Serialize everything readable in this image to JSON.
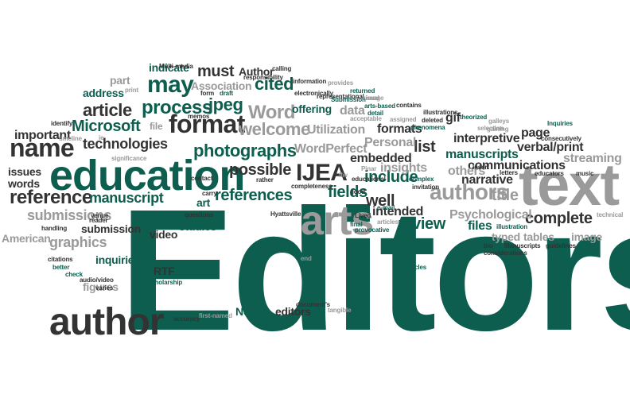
{
  "palette": {
    "green": "#0d5e4f",
    "dark": "#333333",
    "gray": "#9a9a9a",
    "black": "#1a1a1a"
  },
  "words": [
    {
      "text": "Editors",
      "c": "green"
    },
    {
      "text": "text",
      "c": "gray"
    },
    {
      "text": "education",
      "c": "green"
    },
    {
      "text": "author",
      "c": "dark"
    },
    {
      "text": "arts",
      "c": "gray"
    },
    {
      "text": "authors",
      "c": "gray"
    },
    {
      "text": "name",
      "c": "dark"
    },
    {
      "text": "format",
      "c": "dark"
    },
    {
      "text": "may",
      "c": "green"
    },
    {
      "text": "IJEA",
      "c": "dark"
    },
    {
      "text": "reference",
      "c": "dark"
    },
    {
      "text": "photographs",
      "c": "green"
    },
    {
      "text": "process",
      "c": "green"
    },
    {
      "text": "Word",
      "c": "gray"
    },
    {
      "text": "article",
      "c": "dark"
    },
    {
      "text": "jpeg",
      "c": "green"
    },
    {
      "text": "Microsoft",
      "c": "green"
    },
    {
      "text": "welcome",
      "c": "gray"
    },
    {
      "text": "cited",
      "c": "green"
    },
    {
      "text": "technologies",
      "c": "dark"
    },
    {
      "text": "possible",
      "c": "dark"
    },
    {
      "text": "references",
      "c": "green"
    },
    {
      "text": "fields",
      "c": "green"
    },
    {
      "text": "manuscript",
      "c": "green"
    },
    {
      "text": "submissions",
      "c": "gray"
    },
    {
      "text": "graphics",
      "c": "gray"
    },
    {
      "text": "must",
      "c": "dark"
    },
    {
      "text": "include",
      "c": "green"
    },
    {
      "text": "review",
      "c": "green"
    },
    {
      "text": "well",
      "c": "dark"
    },
    {
      "text": "complete",
      "c": "dark"
    },
    {
      "text": "list",
      "c": "dark"
    },
    {
      "text": "title",
      "c": "gray"
    },
    {
      "text": "streaming",
      "c": "gray"
    },
    {
      "text": "files",
      "c": "green"
    },
    {
      "text": "important",
      "c": "dark"
    },
    {
      "text": "Psychological",
      "c": "gray"
    },
    {
      "text": "interpretive",
      "c": "dark"
    },
    {
      "text": "manuscripts",
      "c": "green"
    },
    {
      "text": "Personal",
      "c": "gray"
    },
    {
      "text": "insights",
      "c": "gray"
    },
    {
      "text": "narrative",
      "c": "dark"
    },
    {
      "text": "communications",
      "c": "dark"
    },
    {
      "text": "verbal/print",
      "c": "dark"
    },
    {
      "text": "embedded",
      "c": "dark"
    },
    {
      "text": "intended",
      "c": "dark"
    },
    {
      "text": "others",
      "c": "gray"
    },
    {
      "text": "page",
      "c": "dark"
    },
    {
      "text": "typed",
      "c": "gray"
    },
    {
      "text": "tables",
      "c": "gray"
    },
    {
      "text": "image",
      "c": "gray"
    },
    {
      "text": "Utilization",
      "c": "gray"
    },
    {
      "text": "WordPerfect",
      "c": "gray"
    },
    {
      "text": "formats",
      "c": "dark"
    },
    {
      "text": "data",
      "c": "gray"
    },
    {
      "text": "offering",
      "c": "green"
    },
    {
      "text": "address",
      "c": "green"
    },
    {
      "text": "indicate",
      "c": "green"
    },
    {
      "text": "Author",
      "c": "dark"
    },
    {
      "text": "Association",
      "c": "gray"
    },
    {
      "text": "part",
      "c": "gray"
    },
    {
      "text": "file",
      "c": "gray"
    },
    {
      "text": "gif",
      "c": "dark"
    },
    {
      "text": "issues",
      "c": "dark"
    },
    {
      "text": "words",
      "c": "dark"
    },
    {
      "text": "submission",
      "c": "dark"
    },
    {
      "text": "American",
      "c": "gray"
    },
    {
      "text": "video",
      "c": "dark"
    },
    {
      "text": "studies",
      "c": "green"
    },
    {
      "text": "art",
      "c": "green"
    },
    {
      "text": "inquiries",
      "c": "green"
    },
    {
      "text": "RTF",
      "c": "dark"
    },
    {
      "text": "figures",
      "c": "gray"
    },
    {
      "text": "Notes",
      "c": "green"
    },
    {
      "text": "editors",
      "c": "dark"
    },
    {
      "text": "Multi-media",
      "c": "dark"
    },
    {
      "text": "calling",
      "c": "dark"
    },
    {
      "text": "information",
      "c": "dark"
    },
    {
      "text": "provides",
      "c": "gray"
    },
    {
      "text": "responsibility",
      "c": "dark"
    },
    {
      "text": "print",
      "c": "gray"
    },
    {
      "text": "form",
      "c": "dark"
    },
    {
      "text": "draft",
      "c": "green"
    },
    {
      "text": "memos",
      "c": "dark"
    },
    {
      "text": "electronically",
      "c": "dark"
    },
    {
      "text": "representational",
      "c": "dark"
    },
    {
      "text": "returned",
      "c": "green"
    },
    {
      "text": "Submission",
      "c": "green"
    },
    {
      "text": "visual",
      "c": "gray"
    },
    {
      "text": "image",
      "c": "gray"
    },
    {
      "text": "contains",
      "c": "dark"
    },
    {
      "text": "arts-based",
      "c": "green"
    },
    {
      "text": "acceptable",
      "c": "gray"
    },
    {
      "text": "detail",
      "c": "green"
    },
    {
      "text": "assigned",
      "c": "gray"
    },
    {
      "text": "deleted",
      "c": "dark"
    },
    {
      "text": "illustrations",
      "c": "dark"
    },
    {
      "text": "phenomena",
      "c": "green"
    },
    {
      "text": "theorized",
      "c": "green"
    },
    {
      "text": "galleys",
      "c": "gray"
    },
    {
      "text": "selection",
      "c": "gray"
    },
    {
      "text": "gaining",
      "c": "gray"
    },
    {
      "text": "consecutively",
      "c": "dark"
    },
    {
      "text": "Inquiries",
      "c": "green"
    },
    {
      "text": "identify",
      "c": "dark"
    },
    {
      "text": "timeline",
      "c": "gray"
    },
    {
      "text": "ie",
      "c": "gray"
    },
    {
      "text": "significance",
      "c": "gray"
    },
    {
      "text": "contact",
      "c": "dark"
    },
    {
      "text": "rather",
      "c": "dark"
    },
    {
      "text": "completeness",
      "c": "dark"
    },
    {
      "text": "Hyattsville",
      "c": "dark"
    },
    {
      "text": "flw",
      "c": "gray"
    },
    {
      "text": "educational",
      "c": "dark"
    },
    {
      "text": "Pinar",
      "c": "gray"
    },
    {
      "text": "complex",
      "c": "green"
    },
    {
      "text": "invitation",
      "c": "dark"
    },
    {
      "text": "Insert",
      "c": "dark"
    },
    {
      "text": "letters",
      "c": "dark"
    },
    {
      "text": "educators",
      "c": "dark"
    },
    {
      "text": "music",
      "c": "dark"
    },
    {
      "text": "bio",
      "c": "dark"
    },
    {
      "text": "Manuscripts",
      "c": "dark"
    },
    {
      "text": "guidelines",
      "c": "dark"
    },
    {
      "text": "considerations",
      "c": "dark"
    },
    {
      "text": "illustration",
      "c": "green"
    },
    {
      "text": "technical",
      "c": "gray"
    },
    {
      "text": "good",
      "c": "dark"
    },
    {
      "text": "Lived",
      "c": "dark"
    },
    {
      "text": "articles",
      "c": "gray"
    },
    {
      "text": "e-mail",
      "c": "green"
    },
    {
      "text": "final",
      "c": "green"
    },
    {
      "text": "provocative",
      "c": "green"
    },
    {
      "text": "carry",
      "c": "dark"
    },
    {
      "text": "venue",
      "c": "dark"
    },
    {
      "text": "reader",
      "c": "dark"
    },
    {
      "text": "handling",
      "c": "dark"
    },
    {
      "text": "questions",
      "c": "dark"
    },
    {
      "text": "citations",
      "c": "dark"
    },
    {
      "text": "better",
      "c": "green"
    },
    {
      "text": "check",
      "c": "green"
    },
    {
      "text": "audio/video",
      "c": "dark"
    },
    {
      "text": "varies",
      "c": "dark"
    },
    {
      "text": "scholarship",
      "c": "green"
    },
    {
      "text": "end",
      "c": "gray"
    },
    {
      "text": "Articles",
      "c": "green"
    },
    {
      "text": "accuracy",
      "c": "dark"
    },
    {
      "text": "first-named",
      "c": "gray"
    },
    {
      "text": "document's",
      "c": "dark"
    },
    {
      "text": "tangible",
      "c": "gray"
    }
  ]
}
